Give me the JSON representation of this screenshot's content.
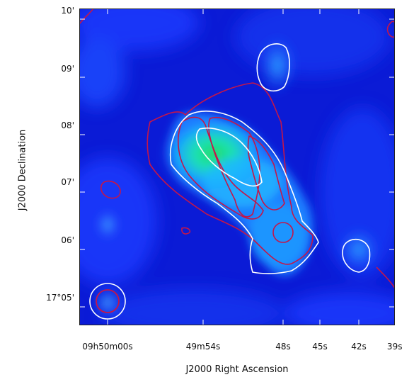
{
  "axes": {
    "xlabel": "J2000 Right Ascension",
    "ylabel": "J2000 Declination",
    "yticks": [
      "10'",
      "09'",
      "08'",
      "07'",
      "06'",
      "17°05'"
    ],
    "xticks": [
      "09h50m00s",
      "49m54s",
      "48s",
      "45s",
      "42s",
      "39s"
    ]
  },
  "colors": {
    "background_low": "#0b1bd6",
    "background_mid": "#1f5cff",
    "emission_high": "#22d66a",
    "contour_white": "#ffffff",
    "contour_red": "#c4164a"
  }
}
